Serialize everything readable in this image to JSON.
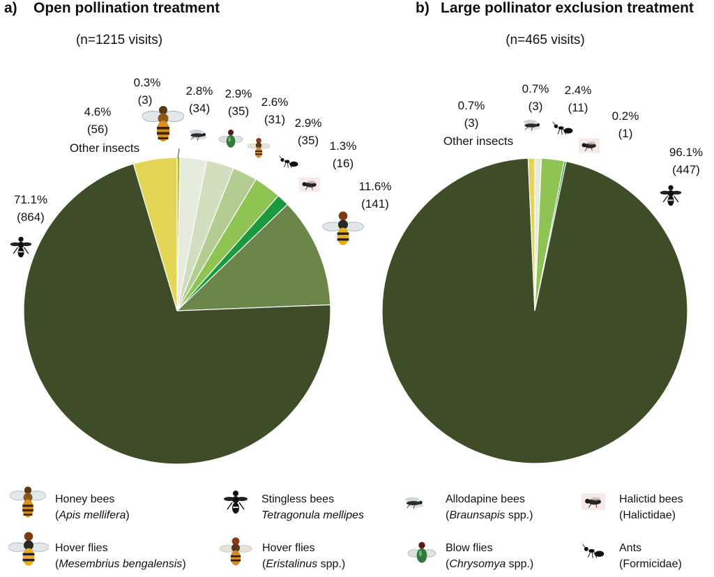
{
  "chart_data": [
    {
      "type": "pie",
      "panel": "a)",
      "title": "Open pollination treatment",
      "subtitle": "(n=1215 visits)",
      "slices": [
        {
          "name": "Honey bees",
          "percent": 0.3,
          "count": 3,
          "pct_label": "0.3%",
          "count_label": "(3)",
          "color": "#bcbc1f"
        },
        {
          "name": "Allodapine bees",
          "percent": 2.8,
          "count": 34,
          "pct_label": "2.8%",
          "count_label": "(34)",
          "color": "#e6ebdd"
        },
        {
          "name": "Blow flies",
          "percent": 2.9,
          "count": 35,
          "pct_label": "2.9%",
          "count_label": "(35)",
          "color": "#d2dec0"
        },
        {
          "name": "Hover flies (Eristalinus spp.)",
          "percent": 2.6,
          "count": 31,
          "pct_label": "2.6%",
          "count_label": "(31)",
          "color": "#b2cc92"
        },
        {
          "name": "Ants",
          "percent": 2.9,
          "count": 35,
          "pct_label": "2.9%",
          "count_label": "(35)",
          "color": "#8fc353"
        },
        {
          "name": "Halictid bees",
          "percent": 1.3,
          "count": 16,
          "pct_label": "1.3%",
          "count_label": "(16)",
          "color": "#1a9a3d"
        },
        {
          "name": "Hover flies (Mesembrius bengalensis)",
          "percent": 11.6,
          "count": 141,
          "pct_label": "11.6%",
          "count_label": "(141)",
          "color": "#6c854a"
        },
        {
          "name": "Stingless bees",
          "percent": 71.1,
          "count": 864,
          "pct_label": "71.1%",
          "count_label": "(864)",
          "color": "#3f4c28"
        },
        {
          "name": "Other insects",
          "percent": 4.6,
          "count": 56,
          "pct_label": "4.6%",
          "count_label": "(56)",
          "color": "#e3d555"
        }
      ],
      "other_label": "Other insects"
    },
    {
      "type": "pie",
      "panel": "b)",
      "title": "Large pollinator exclusion treatment",
      "subtitle": "(n=465 visits)",
      "slices": [
        {
          "name": "Allodapine bees",
          "percent": 0.7,
          "count": 3,
          "pct_label": "0.7%",
          "count_label": "(3)",
          "color": "#e6ebdd"
        },
        {
          "name": "Ants",
          "percent": 2.4,
          "count": 11,
          "pct_label": "2.4%",
          "count_label": "(11)",
          "color": "#8fc353"
        },
        {
          "name": "Halictid bees",
          "percent": 0.2,
          "count": 1,
          "pct_label": "0.2%",
          "count_label": "(1)",
          "color": "#1a9a3d"
        },
        {
          "name": "Stingless bees",
          "percent": 96.1,
          "count": 447,
          "pct_label": "96.1%",
          "count_label": "(447)",
          "color": "#3f4c28"
        },
        {
          "name": "Other insects",
          "percent": 0.7,
          "count": 3,
          "pct_label": "0.7%",
          "count_label": "(3)",
          "color": "#e3d555"
        }
      ],
      "other_label": "Other insects"
    }
  ],
  "legend": [
    {
      "name": "Honey bees",
      "sci": "Apis mellifera",
      "sci_prefix": "(",
      "sci_suffix": ")",
      "icon": "honey-bee-icon"
    },
    {
      "name": "Stingless bees",
      "sci": "Tetragonula mellipes",
      "sci_prefix": "",
      "sci_suffix": "",
      "icon": "stingless-bee-icon"
    },
    {
      "name": "Allodapine bees",
      "sci": "Braunsapis",
      "sci_prefix": "(",
      "sci_suffix": " spp.)",
      "icon": "allodapine-bee-icon"
    },
    {
      "name": "Halictid bees",
      "sci": "Halictidae",
      "sci_prefix": "(",
      "sci_suffix": ")",
      "icon": "halictid-bee-icon",
      "sci_plain": true
    },
    {
      "name": "Hover flies",
      "sci": "Mesembrius bengalensis",
      "sci_prefix": "(",
      "sci_suffix": ")",
      "icon": "hover-fly-mesembrius-icon"
    },
    {
      "name": "Hover flies",
      "sci": "Eristalinus",
      "sci_prefix": "(",
      "sci_suffix": " spp.)",
      "icon": "hover-fly-eristalinus-icon"
    },
    {
      "name": "Blow flies",
      "sci": "Chrysomya",
      "sci_prefix": "(",
      "sci_suffix": " spp.)",
      "icon": "blow-fly-icon"
    },
    {
      "name": "Ants",
      "sci": "Formicidae",
      "sci_prefix": "(",
      "sci_suffix": ")",
      "icon": "ant-icon",
      "sci_plain": true
    }
  ]
}
